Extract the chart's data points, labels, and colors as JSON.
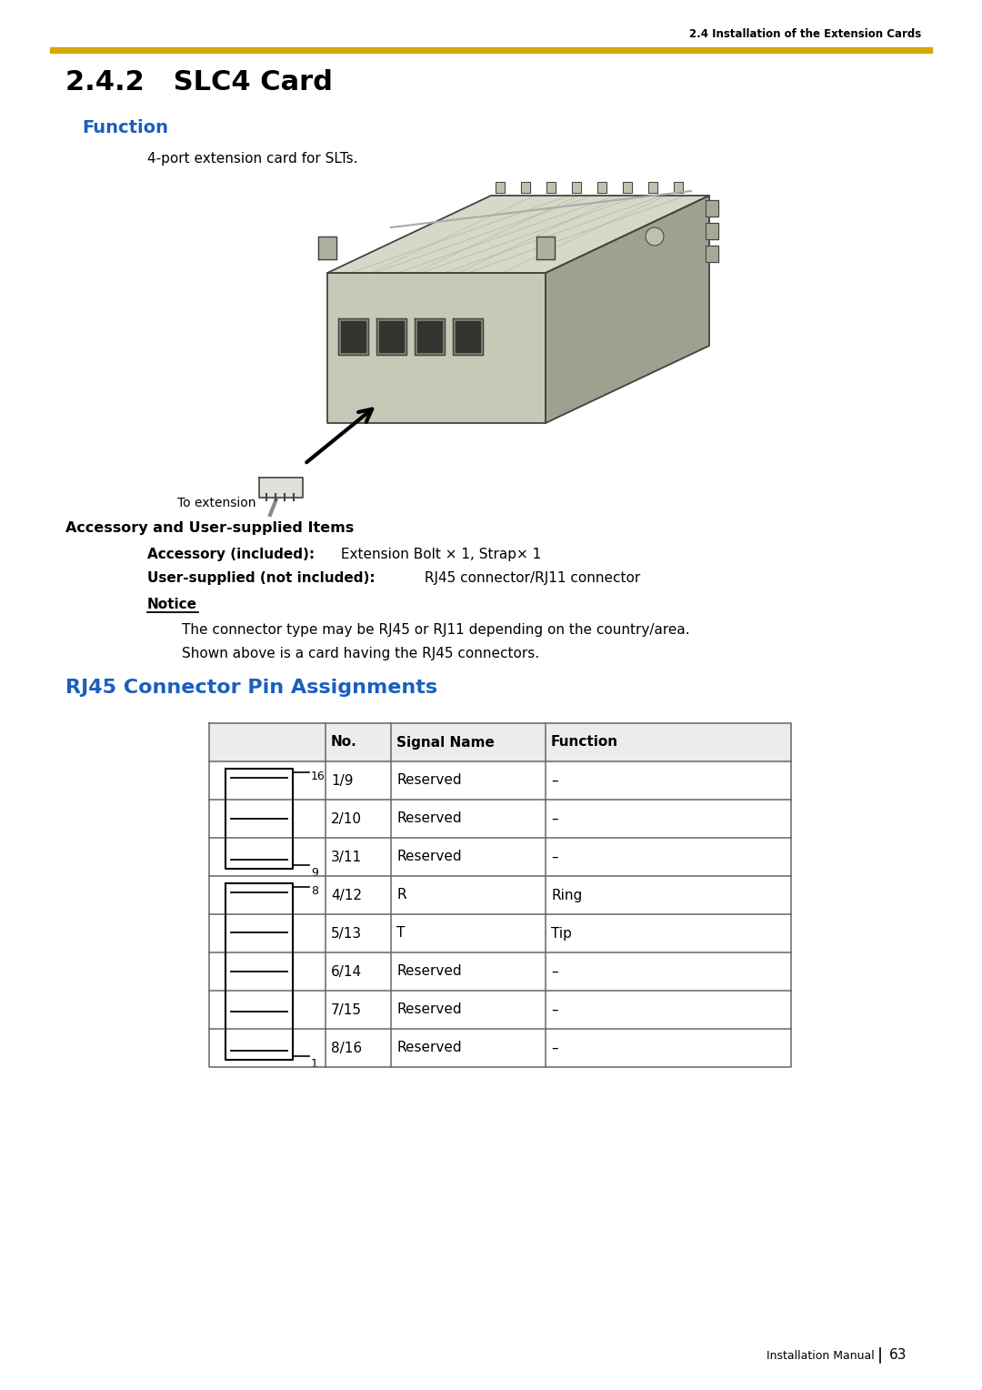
{
  "page_title_section": "2.4 Installation of the Extension Cards",
  "section_number": "2.4.2",
  "section_title": "SLC4 Card",
  "function_heading": "Function",
  "function_text": "4-port extension card for SLTs.",
  "to_extension_label": "To extension",
  "accessory_heading": "Accessory and User-supplied Items",
  "accessory_included_label": "Accessory (included):",
  "accessory_included_text": " Extension Bolt × 1, Strap× 1",
  "user_supplied_label": "User-supplied (not included):",
  "user_supplied_text": " RJ45 connector/RJ11 connector",
  "notice_heading": "Notice",
  "notice_text1": "The connector type may be RJ45 or RJ11 depending on the country/area.",
  "notice_text2": "Shown above is a card having the RJ45 connectors.",
  "rj45_heading": "RJ45 Connector Pin Assignments",
  "table_headers": [
    "No.",
    "Signal Name",
    "Function"
  ],
  "table_rows": [
    [
      "1/9",
      "Reserved",
      "–"
    ],
    [
      "2/10",
      "Reserved",
      "–"
    ],
    [
      "3/11",
      "Reserved",
      "–"
    ],
    [
      "4/12",
      "R",
      "Ring"
    ],
    [
      "5/13",
      "T",
      "Tip"
    ],
    [
      "6/14",
      "Reserved",
      "–"
    ],
    [
      "7/15",
      "Reserved",
      "–"
    ],
    [
      "8/16",
      "Reserved",
      "–"
    ]
  ],
  "footer_text": "Installation Manual",
  "page_number": "63",
  "gold_bar_color": "#D4A800",
  "blue_heading_color": "#1B5EBE",
  "black": "#000000",
  "white": "#FFFFFF",
  "light_gray": "#ECECEC",
  "table_border": "#666666",
  "background": "#FFFFFF",
  "card_fill": "#C8C8B8",
  "card_top": "#D8D8C8",
  "card_side": "#A0A090",
  "card_dark": "#888878",
  "card_outline": "#444444"
}
